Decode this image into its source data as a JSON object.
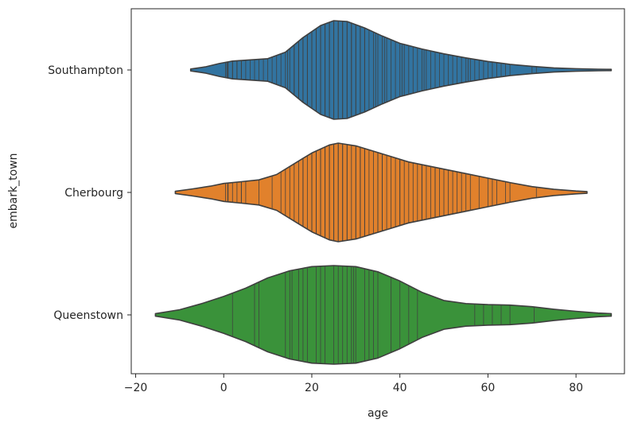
{
  "chart_data": {
    "type": "violin",
    "orientation": "horizontal",
    "inner": "stick",
    "xlabel": "age",
    "ylabel": "embark_town",
    "xlim": [
      -21,
      91
    ],
    "xticks": [
      -20,
      0,
      20,
      40,
      60,
      80
    ],
    "xtick_labels": [
      "−20",
      "0",
      "20",
      "40",
      "60",
      "80"
    ],
    "categories": [
      "Southampton",
      "Cherbourg",
      "Queenstown"
    ],
    "series": [
      {
        "name": "Southampton",
        "color": "#3274a1",
        "range": [
          -7.5,
          88
        ],
        "density": [
          [
            -7.5,
            1.2
          ],
          [
            -4,
            4
          ],
          [
            -1,
            8
          ],
          [
            2,
            11
          ],
          [
            6,
            12.5
          ],
          [
            10,
            14
          ],
          [
            14,
            22
          ],
          [
            18,
            40
          ],
          [
            22,
            55
          ],
          [
            25,
            61
          ],
          [
            28,
            60
          ],
          [
            32,
            52
          ],
          [
            36,
            42
          ],
          [
            40,
            33
          ],
          [
            45,
            26
          ],
          [
            50,
            20
          ],
          [
            55,
            15
          ],
          [
            60,
            10.5
          ],
          [
            65,
            7
          ],
          [
            70,
            4.5
          ],
          [
            75,
            2.6
          ],
          [
            80,
            1.6
          ],
          [
            85,
            1
          ],
          [
            88,
            0.8
          ]
        ],
        "ages": [
          0.4,
          0.7,
          0.9,
          1,
          2,
          2,
          3,
          3,
          4,
          4,
          5,
          6,
          7,
          8,
          9,
          10,
          11,
          12,
          13,
          14,
          14.5,
          15,
          16,
          16,
          17,
          17,
          18,
          18,
          19,
          19,
          20,
          20,
          21,
          21,
          22,
          22,
          23,
          23,
          24,
          24,
          25,
          25,
          26,
          26,
          27,
          27,
          28,
          28,
          29,
          29,
          30,
          30,
          31,
          31,
          32,
          32,
          33,
          34,
          34.5,
          35,
          36,
          36.5,
          37,
          38,
          39,
          40,
          40.5,
          41,
          42,
          43,
          44,
          45,
          45.5,
          46,
          47,
          48,
          49,
          50,
          51,
          52,
          53,
          54,
          55,
          55.5,
          56,
          57,
          58,
          59,
          60,
          61,
          62,
          63,
          64,
          65,
          70,
          71
        ]
      },
      {
        "name": "Cherbourg",
        "color": "#e1812c",
        "range": [
          -11,
          82.5
        ],
        "density": [
          [
            -11,
            1.2
          ],
          [
            -7,
            4
          ],
          [
            -3,
            7
          ],
          [
            0,
            10
          ],
          [
            4,
            12
          ],
          [
            8,
            14
          ],
          [
            12,
            20
          ],
          [
            16,
            32
          ],
          [
            20,
            44
          ],
          [
            24,
            53
          ],
          [
            26,
            55
          ],
          [
            30,
            52
          ],
          [
            34,
            46
          ],
          [
            38,
            40
          ],
          [
            42,
            34
          ],
          [
            46,
            30
          ],
          [
            50,
            26
          ],
          [
            55,
            21
          ],
          [
            60,
            16
          ],
          [
            65,
            11
          ],
          [
            70,
            6.5
          ],
          [
            75,
            3.5
          ],
          [
            80,
            1.6
          ],
          [
            82.5,
            1
          ]
        ],
        "ages": [
          0.4,
          0.9,
          1,
          2,
          3,
          4,
          4,
          5,
          8,
          11,
          13,
          14,
          15,
          16,
          17,
          18,
          18,
          19,
          20,
          20,
          21,
          21,
          22,
          22,
          23,
          23,
          24,
          24,
          25,
          25,
          26,
          26,
          27,
          27,
          28,
          28,
          29,
          30,
          30,
          31,
          31,
          32,
          32,
          33,
          34,
          35,
          35,
          36,
          36,
          37,
          38,
          39,
          40,
          40,
          41,
          42,
          43,
          44,
          45,
          45,
          46,
          47,
          48,
          48,
          49,
          50,
          51,
          52,
          53,
          54,
          55,
          56,
          58,
          60,
          61,
          62,
          64,
          65,
          71
        ]
      },
      {
        "name": "Queenstown",
        "color": "#3a923a",
        "range": [
          -15.5,
          88
        ],
        "density": [
          [
            -15.5,
            1.2
          ],
          [
            -10,
            5
          ],
          [
            -5,
            11
          ],
          [
            0,
            18
          ],
          [
            5,
            26
          ],
          [
            10,
            36
          ],
          [
            15,
            43
          ],
          [
            20,
            47
          ],
          [
            25,
            48
          ],
          [
            30,
            47
          ],
          [
            35,
            42
          ],
          [
            40,
            33
          ],
          [
            45,
            22
          ],
          [
            50,
            14
          ],
          [
            55,
            11
          ],
          [
            60,
            10
          ],
          [
            65,
            9.5
          ],
          [
            70,
            8
          ],
          [
            75,
            5.5
          ],
          [
            80,
            3.5
          ],
          [
            85,
            1.8
          ],
          [
            88,
            1.2
          ]
        ],
        "ages": [
          2,
          7,
          8,
          14,
          15,
          15.5,
          17,
          18,
          19,
          21,
          22,
          23,
          25,
          26,
          27,
          28,
          29,
          29.5,
          30,
          32,
          33,
          34,
          35,
          38,
          40,
          42,
          44,
          57,
          59,
          61,
          63,
          65,
          70.5
        ]
      }
    ]
  }
}
